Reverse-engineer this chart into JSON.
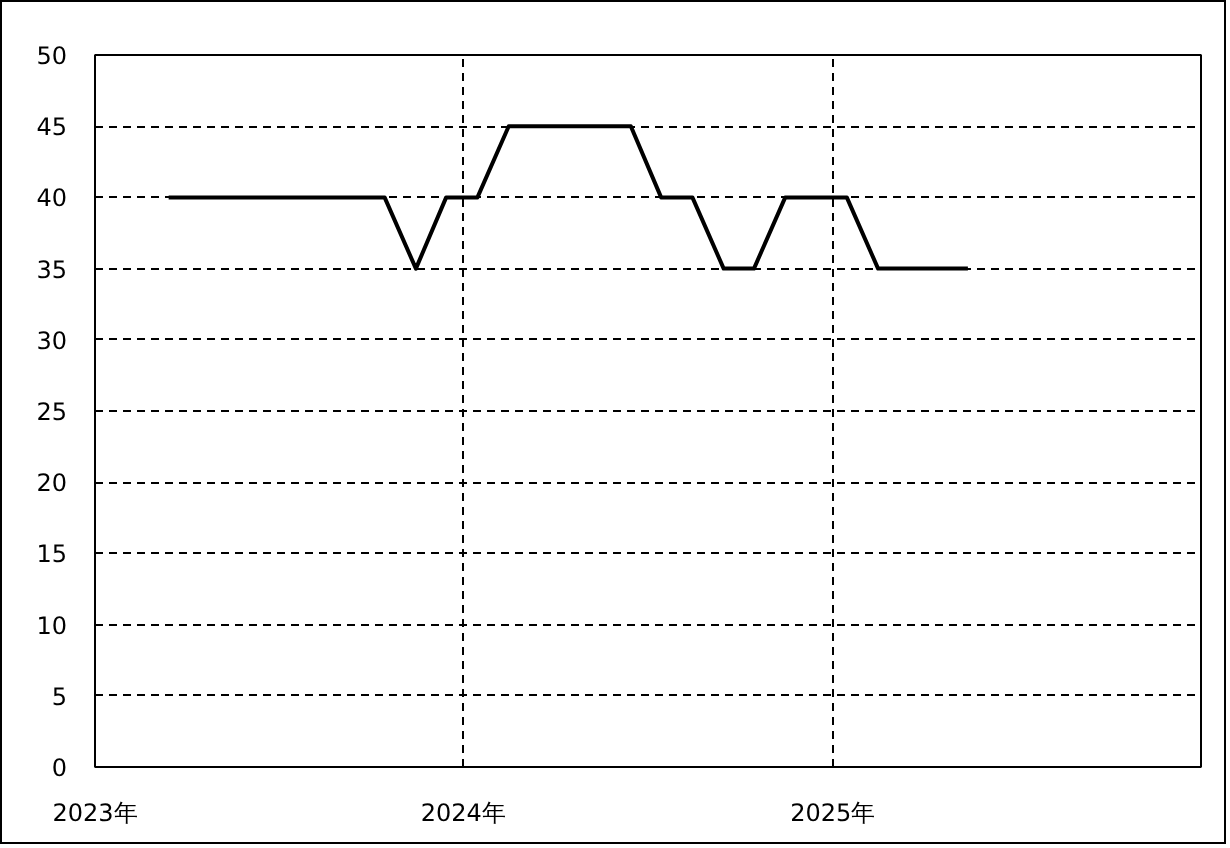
{
  "chart_data": {
    "type": "line",
    "x": [
      "2023-03-15",
      "2023-04-15",
      "2023-05-15",
      "2023-06-15",
      "2023-07-15",
      "2023-08-15",
      "2023-09-15",
      "2023-10-15",
      "2023-11-15",
      "2023-12-15",
      "2024-01-15",
      "2024-02-15",
      "2024-03-15",
      "2024-04-15",
      "2024-05-15",
      "2024-06-15",
      "2024-07-15",
      "2024-08-15",
      "2024-09-15",
      "2024-10-15",
      "2024-11-15",
      "2024-12-15",
      "2025-01-15",
      "2025-02-15",
      "2025-03-15",
      "2025-04-15",
      "2025-05-15"
    ],
    "series": [
      {
        "color": "#000000",
        "values": [
          40,
          40,
          40,
          40,
          40,
          40,
          40,
          40,
          35,
          40,
          40,
          45,
          45,
          45,
          45,
          45,
          40,
          40,
          35,
          35,
          40,
          40,
          40,
          35,
          35,
          35,
          35
        ]
      }
    ],
    "xlim": [
      "2023-01-01",
      "2026-01-01"
    ],
    "xticks": [
      {
        "value": "2023-01-01",
        "label": "2023年"
      },
      {
        "value": "2024-01-01",
        "label": "2024年"
      },
      {
        "value": "2025-01-01",
        "label": "2025年"
      }
    ],
    "ylim": [
      0,
      50
    ],
    "yticks": [
      0,
      5,
      10,
      15,
      20,
      25,
      30,
      35,
      40,
      45,
      50
    ],
    "grid": true,
    "marker": "none",
    "line_style": "solid"
  }
}
